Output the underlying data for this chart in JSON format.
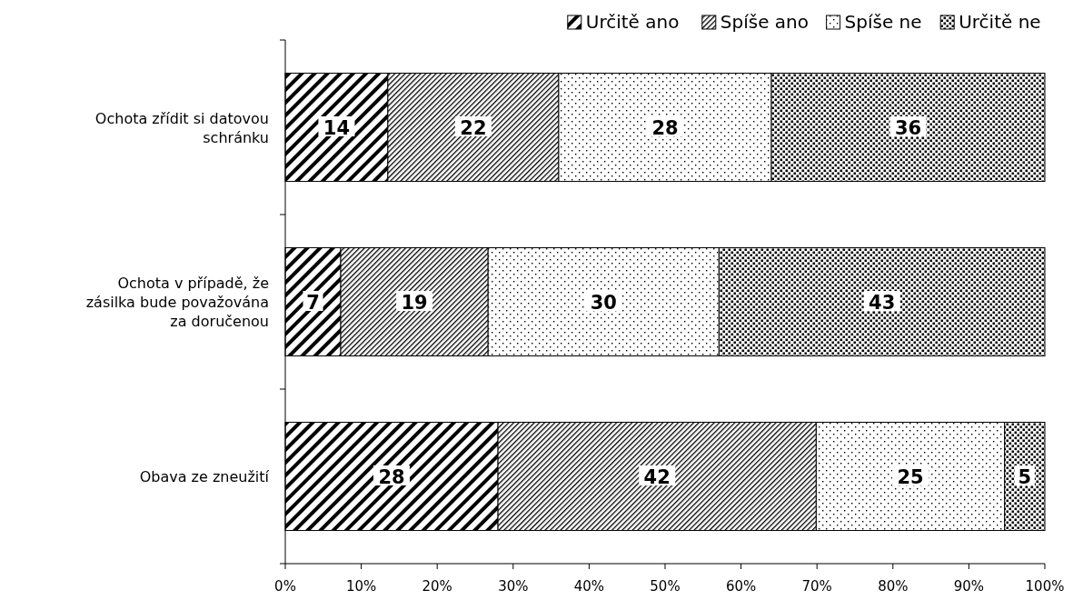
{
  "chart_data": {
    "type": "bar",
    "orientation": "horizontal",
    "stacked": true,
    "categories": [
      "Ochota zřídit si datovou schránku",
      "Ochota v případě, že zásilka bude považována za doručenou",
      "Obava ze zneužití"
    ],
    "series": [
      {
        "name": "Určitě ano",
        "color": "#000000",
        "values": [
          13.5,
          7.3,
          28.0
        ],
        "value_labels": [
          "14",
          "7",
          "28"
        ]
      },
      {
        "name": "Spíše ano",
        "color": "#000000",
        "values": [
          22.5,
          19.4,
          41.9
        ],
        "value_labels": [
          "22",
          "19",
          "42"
        ]
      },
      {
        "name": "Spíše ne",
        "color": "#000000",
        "values": [
          28.0,
          30.4,
          24.8
        ],
        "value_labels": [
          "28",
          "30",
          "25"
        ]
      },
      {
        "name": "Určitě ne",
        "color": "#000000",
        "values": [
          36.0,
          42.9,
          5.3
        ],
        "value_labels": [
          "36",
          "43",
          "5"
        ]
      }
    ],
    "xlim": [
      0,
      100
    ],
    "xticks": [
      {
        "value": 0,
        "label": "0%"
      },
      {
        "value": 10,
        "label": "10%"
      },
      {
        "value": 20,
        "label": "20%"
      },
      {
        "value": 30,
        "label": "30%"
      },
      {
        "value": 40,
        "label": "40%"
      },
      {
        "value": 50,
        "label": "50%"
      },
      {
        "value": 60,
        "label": "60%"
      },
      {
        "value": 70,
        "label": "70%"
      },
      {
        "value": 80,
        "label": "80%"
      },
      {
        "value": 90,
        "label": "90%"
      },
      {
        "value": 100,
        "label": "100%"
      }
    ],
    "legend": "top right",
    "grid": false
  }
}
